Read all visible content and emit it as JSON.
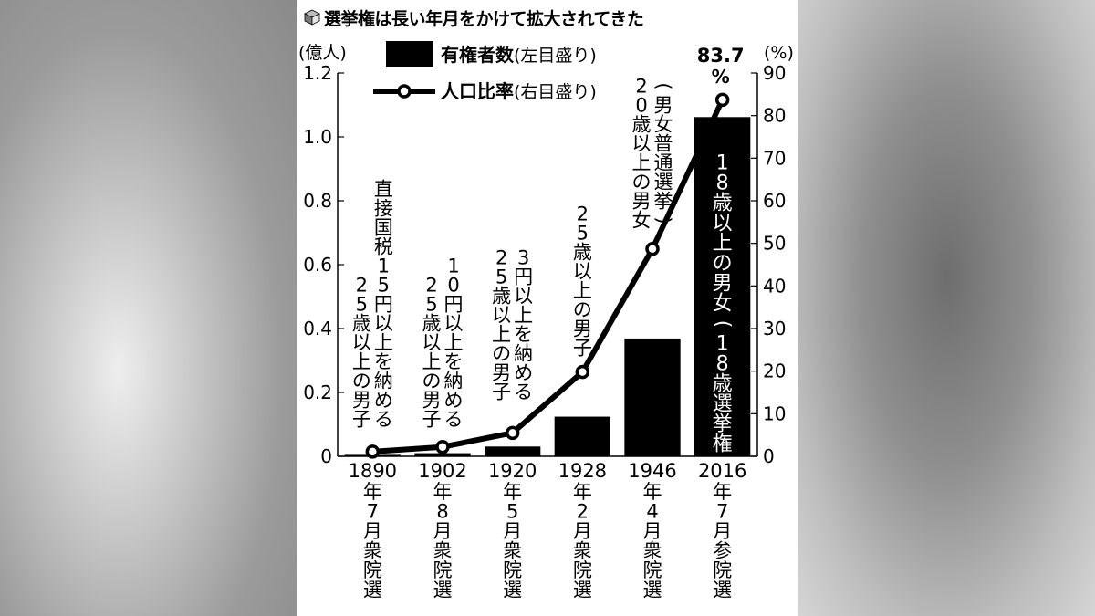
{
  "title": "選挙権は長い年月をかけて拡大されてきた",
  "chart_data": {
    "type": "bar",
    "categories": [
      [
        "1890",
        "年",
        "7",
        "月",
        "衆",
        "院",
        "選"
      ],
      [
        "1902",
        "年",
        "8",
        "月",
        "衆",
        "院",
        "選"
      ],
      [
        "1920",
        "年",
        "5",
        "月",
        "衆",
        "院",
        "選"
      ],
      [
        "1928",
        "年",
        "2",
        "月",
        "衆",
        "院",
        "選"
      ],
      [
        "1946",
        "年",
        "4",
        "月",
        "衆",
        "院",
        "選"
      ],
      [
        "2016",
        "年",
        "7",
        "月",
        "参",
        "院",
        "選"
      ]
    ],
    "left_axis": {
      "unit": "(億人)",
      "ticks": [
        "0",
        "0.2",
        "0.4",
        "0.6",
        "0.8",
        "1.0",
        "1.2"
      ],
      "ylim": [
        0,
        1.2
      ]
    },
    "right_axis": {
      "unit": "(%)",
      "ticks": [
        "0",
        "10",
        "20",
        "30",
        "40",
        "50",
        "60",
        "70",
        "80",
        "90"
      ],
      "ylim": [
        0,
        90
      ]
    },
    "series": [
      {
        "name": "有権者数",
        "name_note": "(左目盛り)",
        "kind": "bar",
        "axis": "left",
        "color": "#000000",
        "values": [
          0.0045,
          0.0098,
          0.0306,
          0.1241,
          0.3688,
          1.062
        ]
      },
      {
        "name": "人口比率",
        "name_note": "(右目盛り)",
        "kind": "line",
        "axis": "right",
        "color": "#000000",
        "values": [
          1.1,
          2.2,
          5.5,
          19.8,
          48.7,
          83.7
        ]
      }
    ],
    "annotations": [
      {
        "index": 0,
        "columns": [
          "25歳以上の男子",
          "直接国税15円以上を納める"
        ]
      },
      {
        "index": 1,
        "columns": [
          "25歳以上の男子",
          "10円以上を納める"
        ]
      },
      {
        "index": 2,
        "columns": [
          "25歳以上の男子",
          "3円以上を納める"
        ]
      },
      {
        "index": 3,
        "columns": [
          "25歳以上の男子"
        ]
      },
      {
        "index": 4,
        "columns": [
          "20歳以上の男女",
          "（男女普通選挙）"
        ]
      },
      {
        "index": 5,
        "columns": [
          "18歳以上の男女（18歳選挙権）"
        ],
        "inverse": true
      }
    ],
    "value_label": {
      "value": "83.7",
      "unit": "%"
    },
    "grid": false,
    "legend_position": "top-center"
  }
}
